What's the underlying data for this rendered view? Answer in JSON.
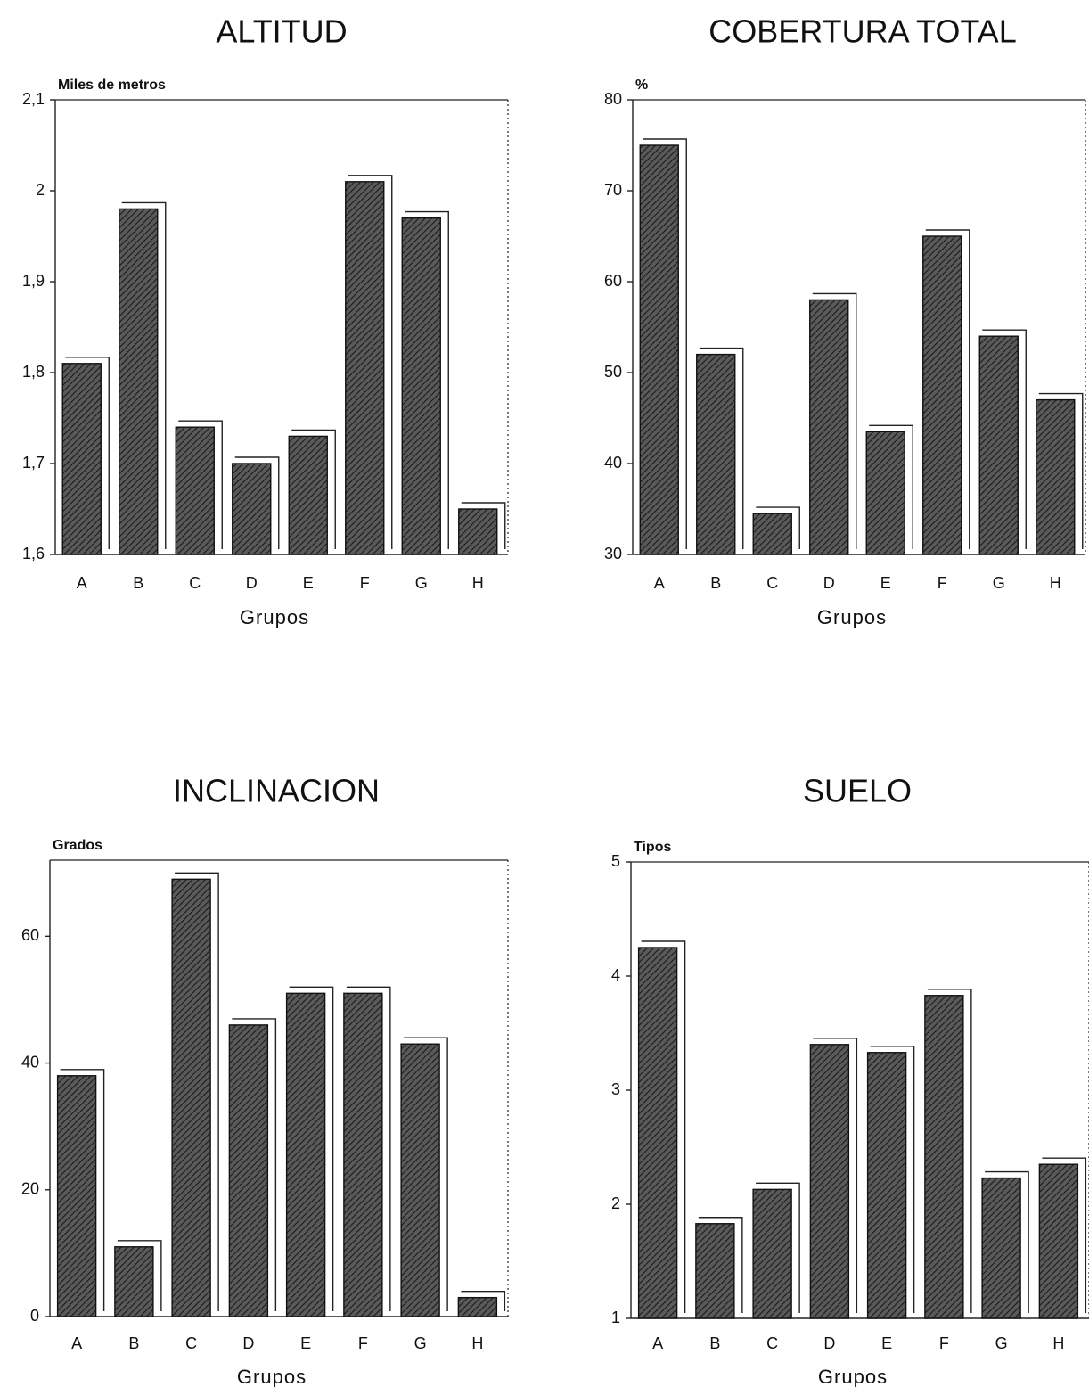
{
  "chart_data": [
    {
      "type": "bar",
      "title": "ALTITUD",
      "ylabel": "Miles de metros",
      "xlabel": "Grupos",
      "categories": [
        "A",
        "B",
        "C",
        "D",
        "E",
        "F",
        "G",
        "H"
      ],
      "values": [
        1.81,
        1.98,
        1.74,
        1.7,
        1.73,
        2.01,
        1.97,
        1.65
      ],
      "ylim": [
        1.6,
        2.1
      ],
      "yticks": [
        "1,6",
        "1,7",
        "1,8",
        "1,9",
        "2",
        "2,1"
      ],
      "ytick_values": [
        1.6,
        1.7,
        1.8,
        1.9,
        2.0,
        2.1
      ]
    },
    {
      "type": "bar",
      "title": "COBERTURA  TOTAL",
      "ylabel": "%",
      "xlabel": "Grupos",
      "categories": [
        "A",
        "B",
        "C",
        "D",
        "E",
        "F",
        "G",
        "H"
      ],
      "values": [
        75,
        52,
        34.5,
        58,
        43.5,
        65,
        54,
        47
      ],
      "ylim": [
        30,
        80
      ],
      "yticks": [
        "30",
        "40",
        "50",
        "60",
        "70",
        "80"
      ],
      "ytick_values": [
        30,
        40,
        50,
        60,
        70,
        80
      ]
    },
    {
      "type": "bar",
      "title": "INCLINACION",
      "ylabel": "Grados",
      "xlabel": "Grupos",
      "categories": [
        "A",
        "B",
        "C",
        "D",
        "E",
        "F",
        "G",
        "H"
      ],
      "values": [
        38,
        11,
        69,
        46,
        51,
        51,
        43,
        3
      ],
      "ylim": [
        0,
        72
      ],
      "yticks": [
        "0",
        "20",
        "40",
        "60"
      ],
      "ytick_values": [
        0,
        20,
        40,
        60
      ]
    },
    {
      "type": "bar",
      "title": "SUELO",
      "ylabel": "Tipos",
      "xlabel": "Grupos",
      "categories": [
        "A",
        "B",
        "C",
        "D",
        "E",
        "F",
        "G",
        "H"
      ],
      "values": [
        4.25,
        1.83,
        2.13,
        3.4,
        3.33,
        3.83,
        2.23,
        2.35
      ],
      "ylim": [
        1,
        5
      ],
      "yticks": [
        "1",
        "2",
        "3",
        "4",
        "5"
      ],
      "ytick_values": [
        1,
        2,
        3,
        4,
        5
      ]
    }
  ]
}
